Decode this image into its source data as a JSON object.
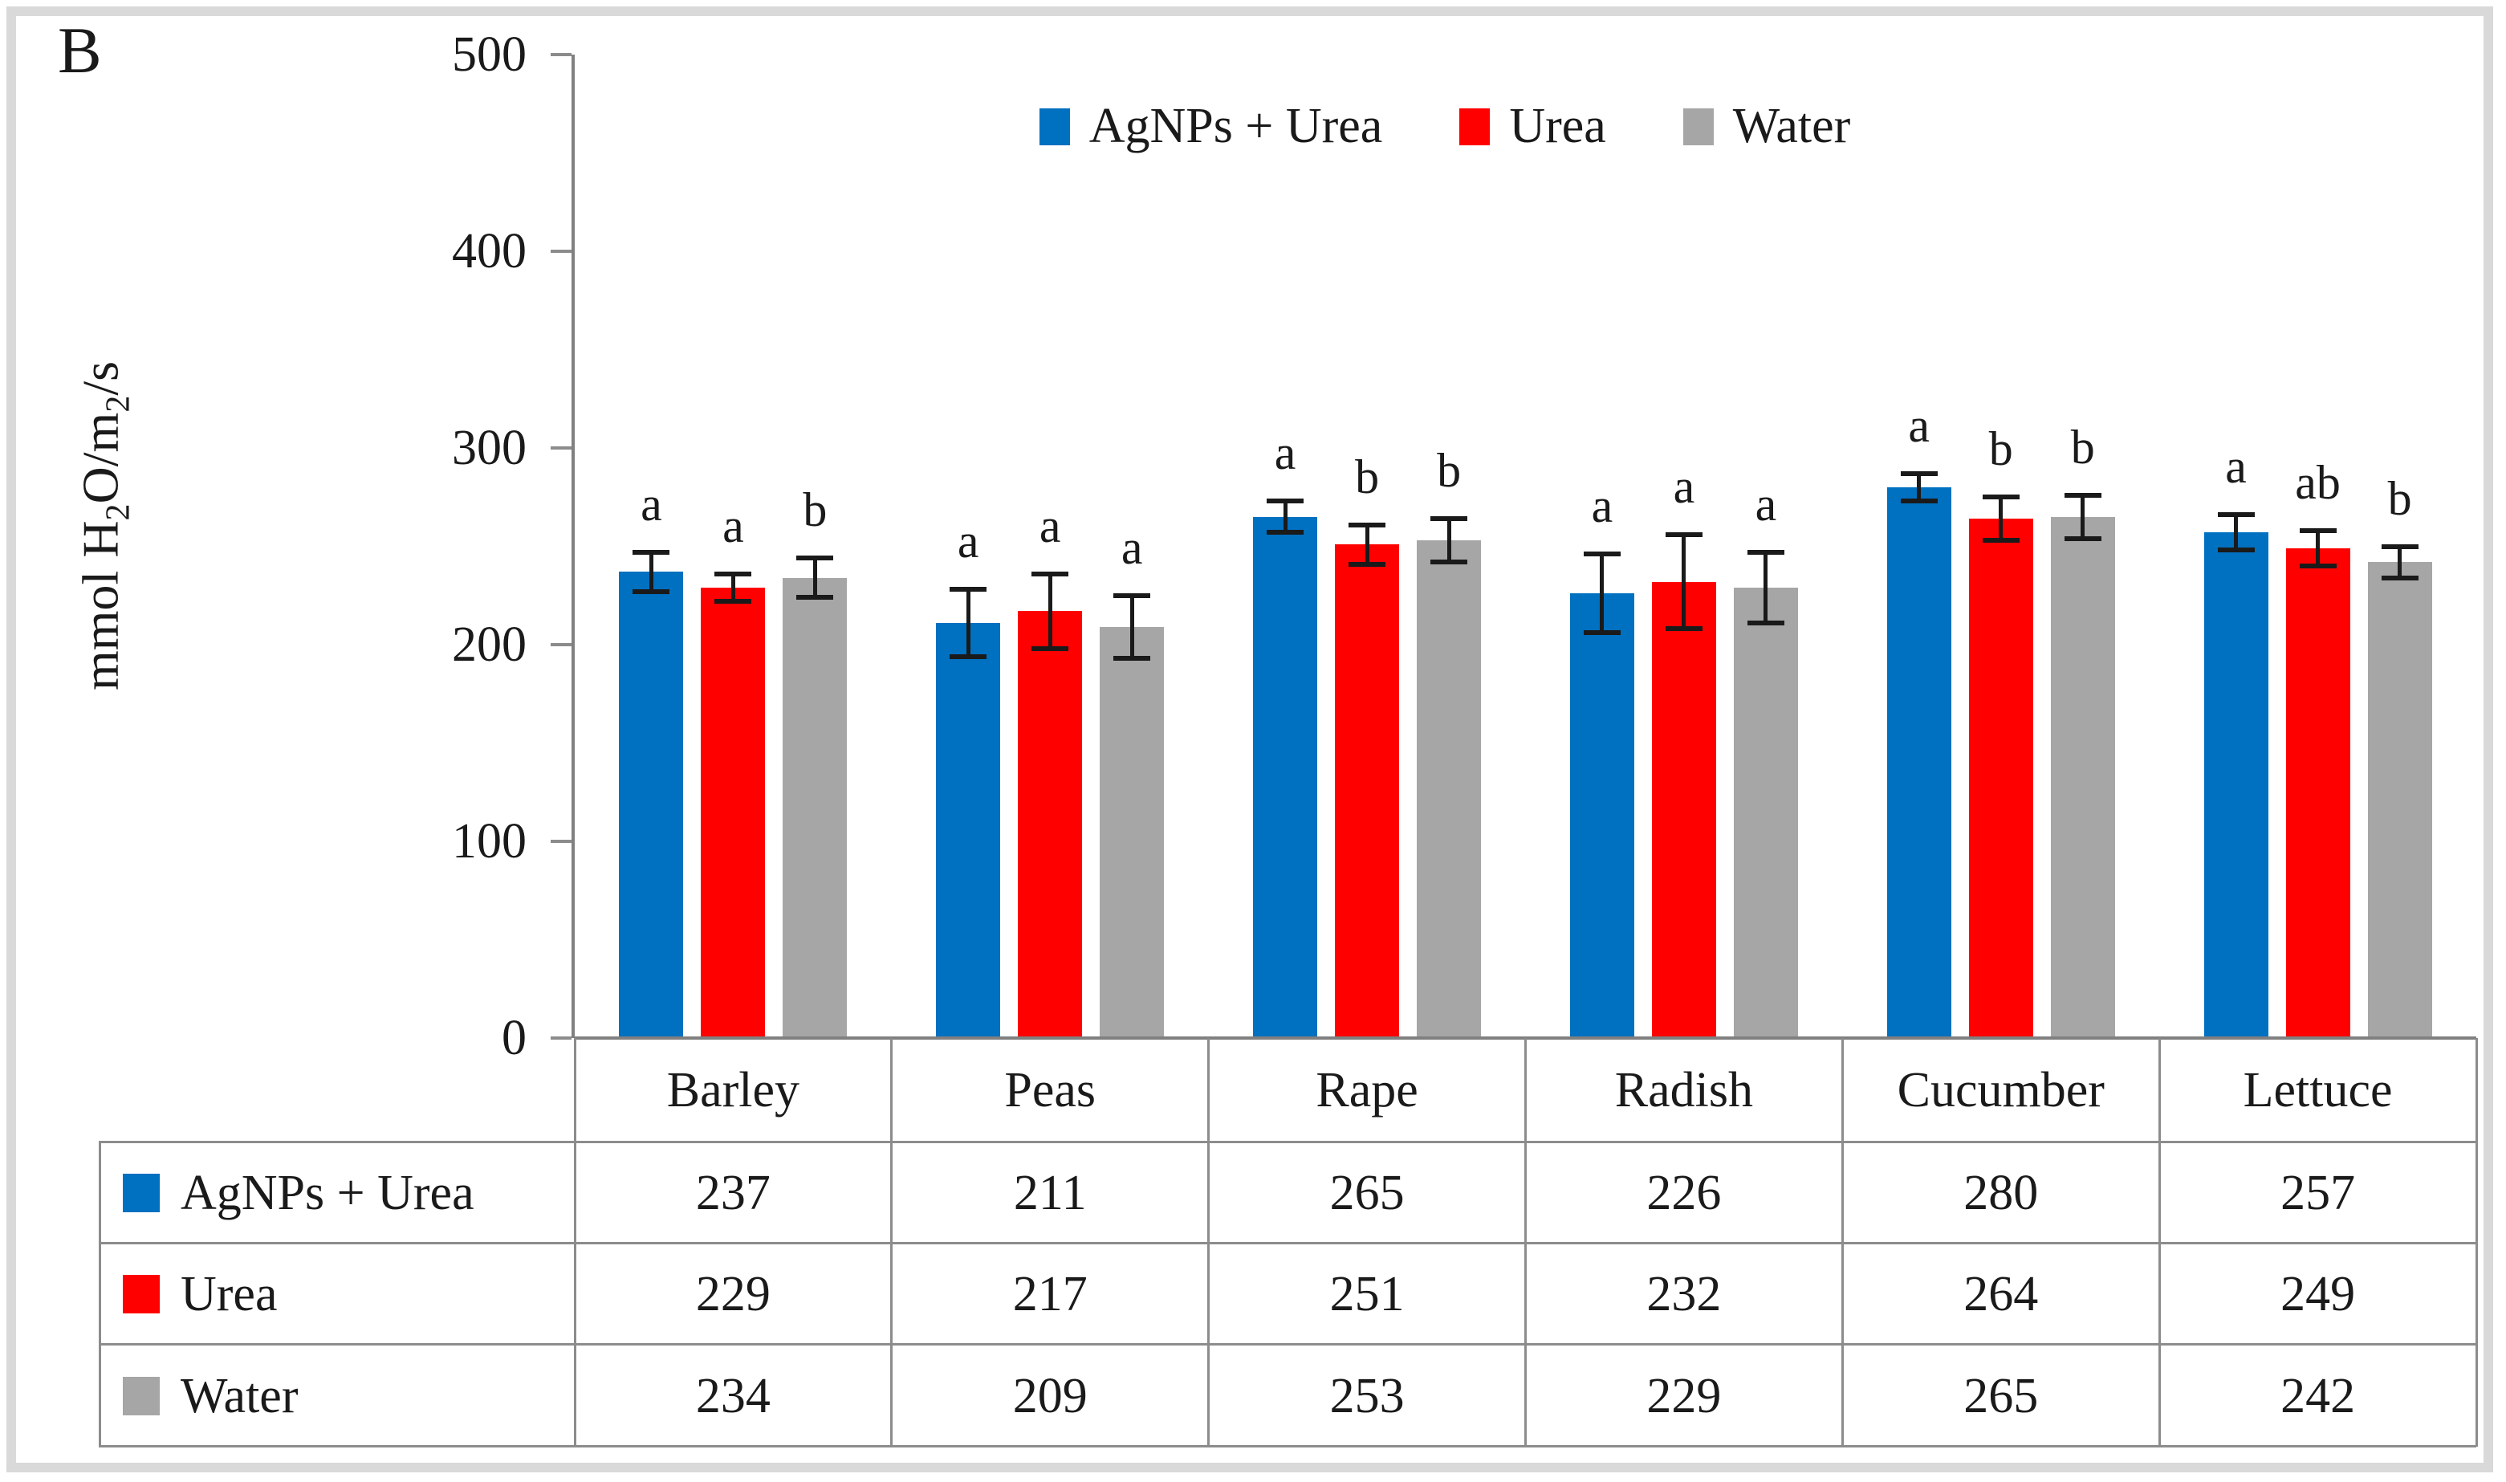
{
  "panel_label": "B",
  "y_axis": {
    "label": "mmol H₂O/m₂/s",
    "ticks": [
      0,
      100,
      200,
      300,
      400,
      500
    ]
  },
  "colors": {
    "series_blue": "#0070C0",
    "series_red": "#FF0000",
    "series_gray": "#A6A6A6",
    "axis_line": "#808080",
    "table_line": "#8c8c8c",
    "error_bar": "#1a1a1a",
    "frame": "#d9d9d9",
    "text": "#1a1a1a"
  },
  "chart_data": {
    "type": "bar",
    "title": "",
    "xlabel": "",
    "ylabel": "mmol H₂O/m₂/s",
    "ylim": [
      0,
      500
    ],
    "yticks": [
      0,
      100,
      200,
      300,
      400,
      500
    ],
    "grid": false,
    "legend_position": "top-center",
    "categories": [
      "Barley",
      "Peas",
      "Rape",
      "Radish",
      "Cucumber",
      "Lettuce"
    ],
    "series": [
      {
        "name": "AgNPs + Urea",
        "color": "#0070C0",
        "values": [
          237,
          211,
          265,
          226,
          280,
          257
        ],
        "error_bars": [
          10,
          17,
          8,
          20,
          7,
          9
        ],
        "significance_letters": [
          "a",
          "a",
          "a",
          "a",
          "a",
          "a"
        ]
      },
      {
        "name": "Urea",
        "color": "#FF0000",
        "values": [
          229,
          217,
          251,
          232,
          264,
          249
        ],
        "error_bars": [
          7,
          19,
          10,
          24,
          11,
          9
        ],
        "significance_letters": [
          "a",
          "a",
          "b",
          "a",
          "b",
          "ab"
        ]
      },
      {
        "name": "Water",
        "color": "#A6A6A6",
        "values": [
          234,
          209,
          253,
          229,
          265,
          242
        ],
        "error_bars": [
          10,
          16,
          11,
          18,
          11,
          8
        ],
        "significance_letters": [
          "b",
          "a",
          "b",
          "a",
          "b",
          "b"
        ]
      }
    ],
    "data_table_shown": true
  }
}
